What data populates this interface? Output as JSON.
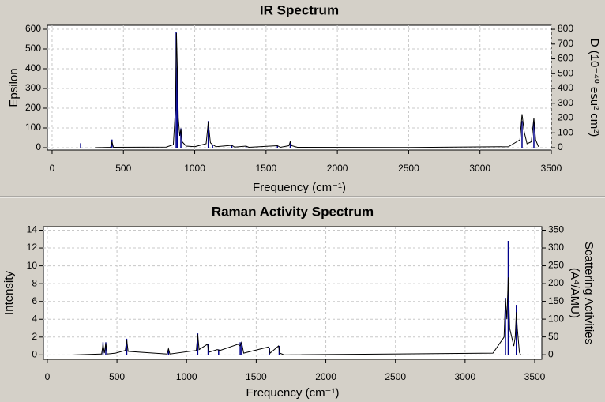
{
  "chart_data": [
    {
      "type": "line",
      "title": "IR Spectrum",
      "x_label": "Frequency (cm⁻¹)",
      "y_label": "Epsilon",
      "y2_label": "D (10⁻⁴⁰ esu² cm²)",
      "xlim": [
        -33,
        3500
      ],
      "xticks": [
        0,
        500,
        1000,
        1500,
        2000,
        2500,
        3000,
        3500
      ],
      "ylim": [
        -12,
        620
      ],
      "yticks": [
        0,
        100,
        200,
        300,
        400,
        500,
        600
      ],
      "y2lim": [
        -16,
        827
      ],
      "y2ticks": [
        0,
        100,
        200,
        300,
        400,
        500,
        600,
        700,
        800
      ],
      "grid": true,
      "curve": {
        "color": "#000000",
        "x": [
          300,
          410,
          420,
          430,
          800,
          850,
          865,
          872,
          878,
          885,
          895,
          903,
          912,
          940,
          1000,
          1080,
          1095,
          1110,
          1125,
          1150,
          1260,
          1280,
          1360,
          1380,
          1580,
          1600,
          1660,
          1670,
          1680,
          1720,
          2500,
          3200,
          3280,
          3295,
          3310,
          3330,
          3360,
          3378,
          3390,
          3410
        ],
        "values": [
          0,
          2,
          30,
          2,
          3,
          15,
          200,
          580,
          400,
          150,
          60,
          95,
          30,
          8,
          5,
          20,
          130,
          25,
          15,
          5,
          12,
          3,
          8,
          2,
          10,
          2,
          10,
          30,
          10,
          2,
          1,
          5,
          40,
          170,
          80,
          20,
          30,
          150,
          40,
          5
        ]
      },
      "sticks": {
        "color": "#00008b",
        "axis": "y2",
        "x": [
          200,
          420,
          870,
          878,
          903,
          1095,
          1125,
          1260,
          1360,
          1580,
          1670,
          3295,
          3378
        ],
        "values": [
          30,
          55,
          780,
          540,
          130,
          180,
          20,
          16,
          11,
          14,
          40,
          180,
          170
        ]
      }
    },
    {
      "type": "line",
      "title": "Raman Activity Spectrum",
      "x_label": "Frequency (cm⁻¹)",
      "y_label": "Intensity",
      "y2_label": "Scattering Activities",
      "y2_label_2": "(A⁴/AMU)",
      "xlim": [
        -28,
        3551
      ],
      "xticks": [
        0,
        500,
        1000,
        1500,
        2000,
        2500,
        3000,
        3500
      ],
      "ylim": [
        -0.5,
        14.4
      ],
      "yticks": [
        0,
        2,
        4,
        6,
        8,
        10,
        12,
        14
      ],
      "y2lim": [
        -13,
        360
      ],
      "y2ticks": [
        0,
        50,
        100,
        150,
        200,
        250,
        300,
        350
      ],
      "grid": true,
      "curve": {
        "color": "#000000",
        "x": [
          190,
          390,
          400,
          410,
          420,
          430,
          490,
          560,
          570,
          580,
          860,
          870,
          880,
          1070,
          1080,
          1090,
          1150,
          1160,
          1220,
          1240,
          1370,
          1385,
          1395,
          1410,
          1590,
          1600,
          1660,
          1670,
          1700,
          3200,
          3280,
          3290,
          3300,
          3310,
          3320,
          3350,
          3360,
          3368,
          3375,
          3390,
          3400
        ],
        "values": [
          0,
          0.1,
          1.2,
          0.2,
          1.3,
          0.1,
          0.2,
          0.5,
          1.7,
          0.4,
          0.1,
          0.7,
          0.1,
          0.5,
          2.3,
          0.6,
          1.2,
          0.3,
          0.6,
          0.5,
          1.2,
          1.0,
          1.4,
          0.2,
          0.9,
          0.2,
          1.0,
          0.2,
          0,
          0.2,
          2,
          6.3,
          4,
          8.7,
          3,
          1,
          2,
          4.8,
          3,
          0.3,
          0
        ]
      },
      "sticks": {
        "color": "#00008b",
        "axis": "y2",
        "x": [
          400,
          420,
          570,
          870,
          1080,
          1155,
          1230,
          1385,
          1395,
          1595,
          1665,
          3290,
          3310,
          3368
        ],
        "values": [
          35,
          35,
          45,
          15,
          60,
          30,
          15,
          35,
          35,
          20,
          25,
          160,
          320,
          140
        ]
      }
    }
  ]
}
